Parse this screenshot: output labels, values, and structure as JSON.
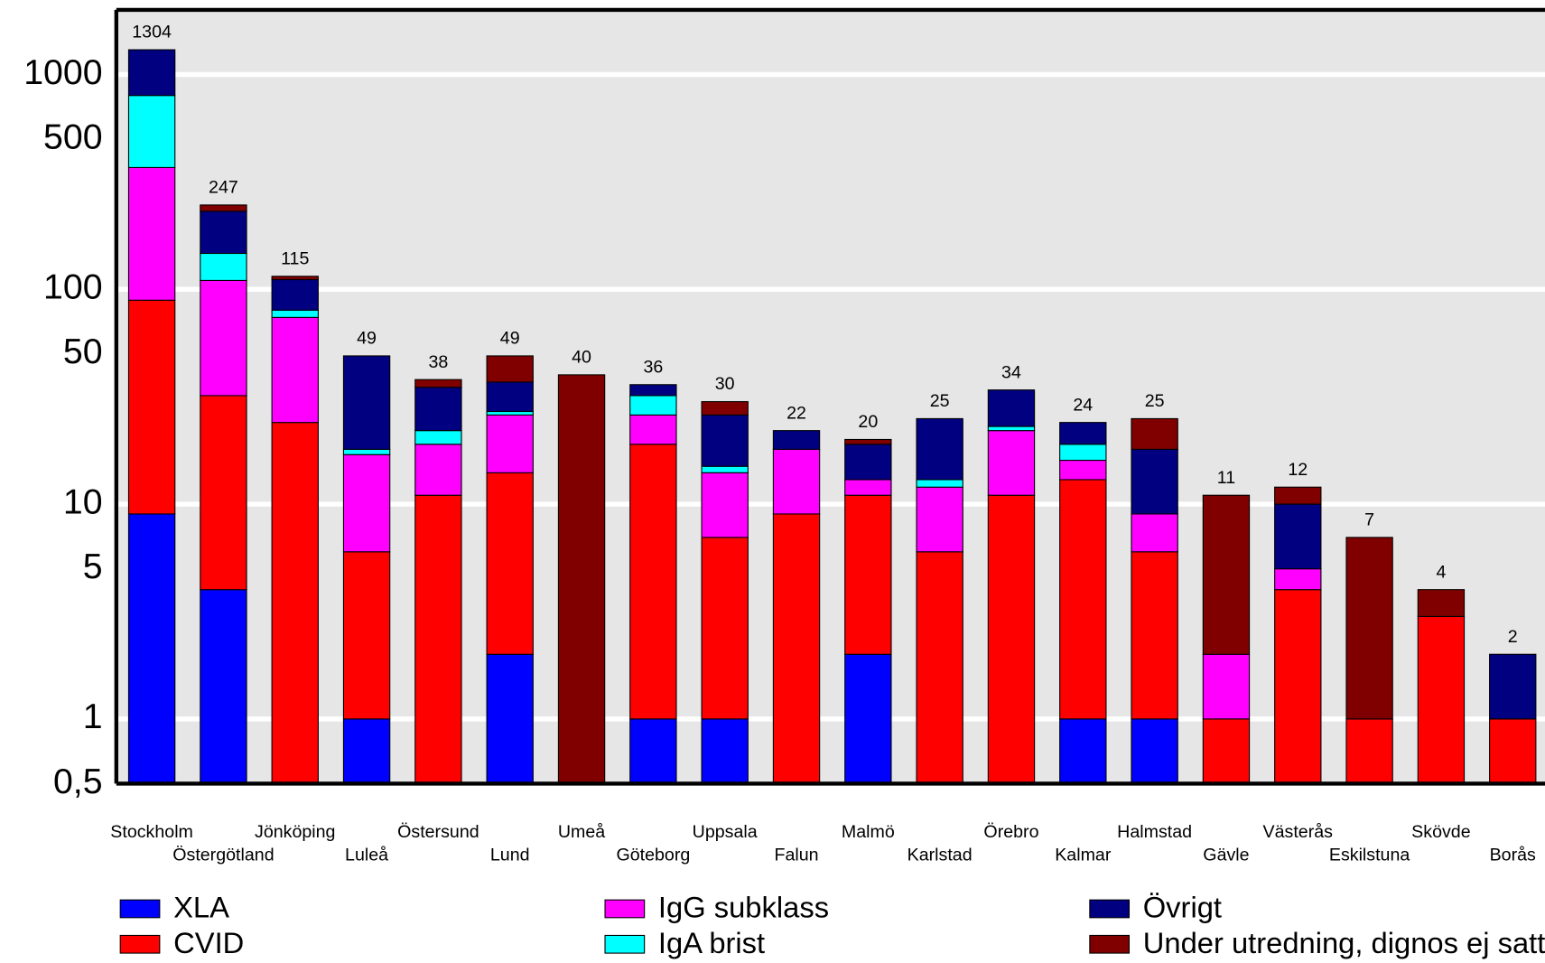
{
  "chart_data": {
    "type": "stacked_bar",
    "log_scale": true,
    "grid": true,
    "categories": [
      "Stockholm",
      "Östergötland",
      "Jönköping",
      "Luleå",
      "Östersund",
      "Lund",
      "Umeå",
      "Göteborg",
      "Uppsala",
      "Falun",
      "Malmö",
      "Karlstad",
      "Örebro",
      "Kalmar",
      "Halmstad",
      "Gävle",
      "Västerås",
      "Eskilstuna",
      "Skövde",
      "Borås"
    ],
    "series": [
      {
        "name": "XLA",
        "color": "#0000ff",
        "values": [
          9,
          4,
          0,
          1,
          0,
          2,
          0,
          1,
          1,
          0,
          2,
          0,
          0,
          1,
          1,
          0,
          0,
          0,
          0,
          0
        ]
      },
      {
        "name": "CVID",
        "color": "#ff0000",
        "values": [
          80,
          28,
          24,
          5,
          11,
          12,
          0,
          18,
          6,
          9,
          9,
          6,
          11,
          12,
          5,
          1,
          4,
          1,
          3,
          1
        ]
      },
      {
        "name": "IgG subklass",
        "color": "#ff00ff",
        "values": [
          280,
          78,
          50,
          11,
          8,
          12,
          0,
          7,
          7,
          9,
          2,
          6,
          11,
          3,
          3,
          1,
          1,
          0,
          0,
          0
        ]
      },
      {
        "name": "IgA brist",
        "color": "#00ffff",
        "values": [
          430,
          37,
          6,
          1,
          3,
          1,
          0,
          6,
          1,
          0,
          0,
          1,
          1,
          3,
          0,
          0,
          0,
          0,
          0,
          0
        ]
      },
      {
        "name": "Övrigt",
        "color": "#000080",
        "values": [
          505,
          84,
          31,
          31,
          13,
          10,
          0,
          4,
          11,
          4,
          6,
          12,
          11,
          5,
          9,
          0,
          5,
          0,
          0,
          1
        ]
      },
      {
        "name": "Under utredning, dignos ej satt",
        "color": "#800000",
        "values": [
          0,
          16,
          4,
          0,
          3,
          12,
          40,
          0,
          4,
          0,
          1,
          0,
          0,
          0,
          7,
          9,
          2,
          6,
          1,
          0
        ]
      }
    ],
    "totals": [
      1304,
      247,
      115,
      49,
      38,
      49,
      40,
      36,
      30,
      22,
      20,
      25,
      34,
      24,
      25,
      11,
      12,
      7,
      4,
      2
    ],
    "ylim": [
      0.5,
      2000
    ],
    "yticks": [
      {
        "value": 0.5,
        "label": "0,5"
      },
      1,
      5,
      10,
      50,
      100,
      500,
      1000
    ]
  }
}
